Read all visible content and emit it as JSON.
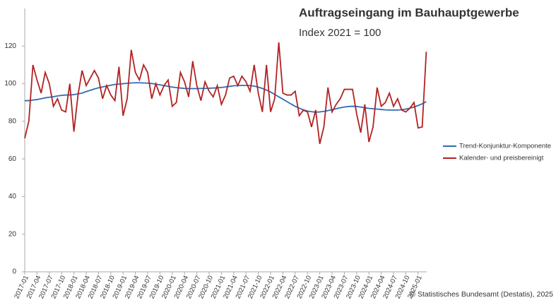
{
  "chart_data": {
    "type": "line",
    "title": "Auftragseingang im Bauhauptgewerbe",
    "subtitle": "Index 2021 = 100",
    "source": "© Statistisches Bundesamt (Destatis), 2025",
    "categories": [
      "2017-01",
      null,
      null,
      "2017-04",
      null,
      null,
      "2017-07",
      null,
      null,
      "2017-10",
      null,
      null,
      "2018-01",
      null,
      null,
      "2018-04",
      null,
      null,
      "2018-07",
      null,
      null,
      "2018-10",
      null,
      null,
      "2019-01",
      null,
      null,
      "2019-04",
      null,
      null,
      "2019-07",
      null,
      null,
      "2019-10",
      null,
      null,
      "2020-01",
      null,
      null,
      "2020-04",
      null,
      null,
      "2020-07",
      null,
      null,
      "2020-10",
      null,
      null,
      "2021-01",
      null,
      null,
      "2021-04",
      null,
      null,
      "2021-07",
      null,
      null,
      "2021-10",
      null,
      null,
      "2022-01",
      null,
      null,
      "2022-04",
      null,
      null,
      "2022-07",
      null,
      null,
      "2022-10",
      null,
      null,
      "2023-01",
      null,
      null,
      "2023-04",
      null,
      null,
      "2023-07",
      null,
      null,
      "2023-10",
      null,
      null,
      "2024-01",
      null,
      null,
      "2024-04",
      null,
      null,
      "2024-07",
      null,
      null,
      "2024-10",
      null,
      null,
      "2025-01",
      null,
      null
    ],
    "series": [
      {
        "name": "Trend-Konjunktur-Komponente",
        "color": "#2e6db4",
        "values": [
          91,
          91,
          91.3,
          91.6,
          92,
          92.5,
          92.8,
          93.1,
          93.5,
          93.8,
          94,
          94,
          94.2,
          94.6,
          95,
          95.8,
          96.5,
          97.2,
          97.8,
          98.3,
          98.8,
          99.2,
          99.6,
          99.8,
          100,
          100.2,
          100.4,
          100.5,
          100.5,
          100.4,
          100.3,
          100.1,
          99.8,
          99.4,
          99,
          98.6,
          98.2,
          97.9,
          97.7,
          97.5,
          97.4,
          97.4,
          97.4,
          97.5,
          97.5,
          97.6,
          97.7,
          97.8,
          98,
          98.3,
          98.6,
          98.9,
          99,
          99.1,
          99.1,
          99,
          98.7,
          98.2,
          97.5,
          96.6,
          95.6,
          94.3,
          93,
          91.8,
          90.5,
          89.2,
          88,
          87,
          86.1,
          85.5,
          85.1,
          84.9,
          85,
          85.3,
          85.7,
          86.2,
          86.7,
          87.2,
          87.6,
          87.9,
          88,
          87.9,
          87.6,
          87.2,
          86.9,
          86.7,
          86.5,
          86.3,
          86.1,
          86,
          86,
          86,
          86.2,
          86.5,
          87,
          87.6,
          88.4,
          89.3,
          90.5
        ]
      },
      {
        "name": "Kalender- und preisbereinigt",
        "color": "#b22222",
        "values": [
          71,
          80,
          110,
          102,
          95,
          106,
          100,
          88,
          92,
          86,
          85,
          100,
          74.5,
          94,
          107,
          99,
          103,
          107,
          103,
          92,
          99,
          94,
          91,
          109,
          83,
          92,
          118,
          106,
          102,
          110,
          106,
          92,
          100,
          94,
          99,
          102,
          88,
          90,
          106,
          101,
          93,
          112,
          99,
          91,
          101,
          96,
          93,
          99,
          89,
          94,
          103,
          104,
          99,
          104,
          101,
          96,
          110,
          95,
          85,
          110,
          85,
          92,
          122,
          95,
          94,
          94,
          96,
          83,
          86,
          85,
          77,
          86,
          68,
          77,
          98,
          85,
          89,
          92,
          97,
          97,
          97,
          84,
          74,
          89,
          69,
          77,
          98,
          88,
          90,
          95,
          88,
          92,
          86,
          85,
          87,
          90,
          76.5,
          77,
          117
        ]
      }
    ],
    "ylim": [
      0,
      140
    ],
    "yticks": [
      0,
      20,
      40,
      60,
      80,
      100,
      120
    ]
  }
}
